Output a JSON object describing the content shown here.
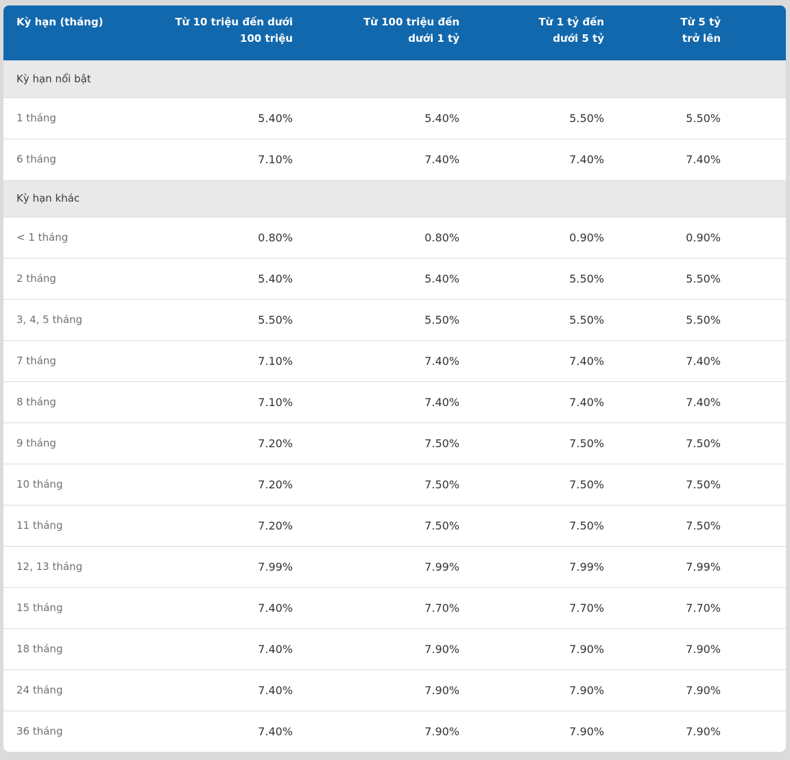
{
  "colors": {
    "page_bg": "#dbdbdb",
    "header_bg": "#1268ad",
    "header_text": "#ffffff",
    "section_bg": "#e9e9e9",
    "section_text": "#3b3b3b",
    "label_text": "#707070",
    "value_text": "#333333",
    "divider": "#dcdcdc"
  },
  "table": {
    "columns": [
      {
        "label": "Kỳ hạn (tháng)"
      },
      {
        "label": "Từ 10 triệu đến dưới\n100 triệu"
      },
      {
        "label": "Từ 100 triệu đến\ndưới 1 tỷ"
      },
      {
        "label": "Từ 1 tỷ đến\ndưới 5 tỷ"
      },
      {
        "label": "Từ 5 tỷ\ntrở lên"
      }
    ],
    "rows": [
      {
        "type": "section",
        "label": "Kỳ hạn nổi bật"
      },
      {
        "type": "data",
        "label": "1 tháng",
        "values": [
          "5.40%",
          "5.40%",
          "5.50%",
          "5.50%"
        ]
      },
      {
        "type": "data",
        "label": "6 tháng",
        "values": [
          "7.10%",
          "7.40%",
          "7.40%",
          "7.40%"
        ]
      },
      {
        "type": "section",
        "label": "Kỳ hạn khác"
      },
      {
        "type": "data",
        "label": "< 1 tháng",
        "values": [
          "0.80%",
          "0.80%",
          "0.90%",
          "0.90%"
        ]
      },
      {
        "type": "data",
        "label": "2 tháng",
        "values": [
          "5.40%",
          "5.40%",
          "5.50%",
          "5.50%"
        ]
      },
      {
        "type": "data",
        "label": "3, 4, 5 tháng",
        "values": [
          "5.50%",
          "5.50%",
          "5.50%",
          "5.50%"
        ]
      },
      {
        "type": "data",
        "label": "7 tháng",
        "values": [
          "7.10%",
          "7.40%",
          "7.40%",
          "7.40%"
        ]
      },
      {
        "type": "data",
        "label": "8 tháng",
        "values": [
          "7.10%",
          "7.40%",
          "7.40%",
          "7.40%"
        ]
      },
      {
        "type": "data",
        "label": "9 tháng",
        "values": [
          "7.20%",
          "7.50%",
          "7.50%",
          "7.50%"
        ]
      },
      {
        "type": "data",
        "label": "10 tháng",
        "values": [
          "7.20%",
          "7.50%",
          "7.50%",
          "7.50%"
        ]
      },
      {
        "type": "data",
        "label": "11 tháng",
        "values": [
          "7.20%",
          "7.50%",
          "7.50%",
          "7.50%"
        ]
      },
      {
        "type": "data",
        "label": "12, 13 tháng",
        "values": [
          "7.99%",
          "7.99%",
          "7.99%",
          "7.99%"
        ]
      },
      {
        "type": "data",
        "label": "15 tháng",
        "values": [
          "7.40%",
          "7.70%",
          "7.70%",
          "7.70%"
        ]
      },
      {
        "type": "data",
        "label": "18 tháng",
        "values": [
          "7.40%",
          "7.90%",
          "7.90%",
          "7.90%"
        ]
      },
      {
        "type": "data",
        "label": "24 tháng",
        "values": [
          "7.40%",
          "7.90%",
          "7.90%",
          "7.90%"
        ]
      },
      {
        "type": "data",
        "label": "36 tháng",
        "values": [
          "7.40%",
          "7.90%",
          "7.90%",
          "7.90%"
        ]
      }
    ]
  }
}
